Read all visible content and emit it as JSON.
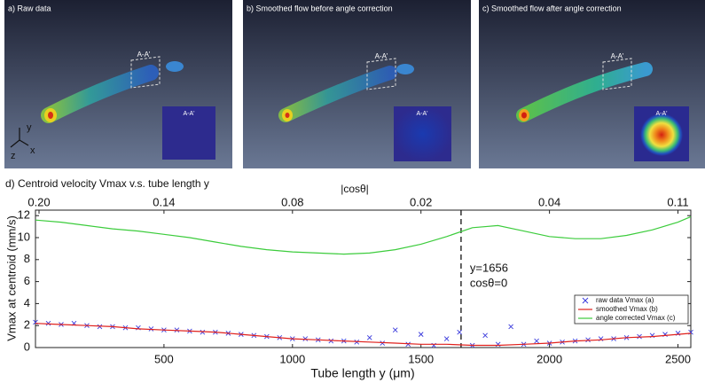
{
  "panels": [
    {
      "title": "a) Raw data",
      "section_label": "A-A'",
      "inset_label": "A-A'",
      "axes": [
        "y",
        "z",
        "x"
      ]
    },
    {
      "title": "b) Smoothed flow before angle correction",
      "section_label": "A-A'",
      "inset_label": "A-A'"
    },
    {
      "title": "c) Smoothed flow after angle correction",
      "section_label": "A-A'",
      "inset_label": "A-A'"
    }
  ],
  "chart_data": {
    "type": "line",
    "title": "d) Centroid velocity Vmax v.s. tube length y",
    "xlabel": "Tube length y (μm)",
    "ylabel": "Vmax at centroid (mm/s)",
    "x2label": "|cosθ|",
    "x2ticks": [
      "0.20",
      "0.14",
      "0.08",
      "0.02",
      "0.04",
      "0.11"
    ],
    "xlim": [
      0,
      2550
    ],
    "xticks": [
      500,
      1000,
      1500,
      2000,
      2500
    ],
    "ylim": [
      0,
      12.5
    ],
    "yticks": [
      0,
      2,
      4,
      6,
      8,
      10,
      12
    ],
    "vline": 1656,
    "annotations": [
      "y=1656",
      "cosθ=0"
    ],
    "legend": "lower right",
    "series": [
      {
        "name": "raw data Vmax (a)",
        "color": "#3b3bdc",
        "marker": "x",
        "x": [
          0,
          50,
          100,
          150,
          200,
          250,
          300,
          350,
          400,
          450,
          500,
          550,
          600,
          650,
          700,
          750,
          800,
          850,
          900,
          950,
          1000,
          1050,
          1100,
          1150,
          1200,
          1250,
          1300,
          1350,
          1400,
          1450,
          1500,
          1550,
          1600,
          1650,
          1700,
          1750,
          1800,
          1850,
          1900,
          1950,
          2000,
          2050,
          2100,
          2150,
          2200,
          2250,
          2300,
          2350,
          2400,
          2450,
          2500,
          2550
        ],
        "values": [
          2.3,
          2.2,
          2.1,
          2.2,
          2.0,
          1.9,
          1.9,
          1.8,
          1.8,
          1.7,
          1.6,
          1.6,
          1.5,
          1.4,
          1.4,
          1.3,
          1.2,
          1.1,
          1.0,
          0.9,
          0.8,
          0.8,
          0.7,
          0.6,
          0.6,
          0.5,
          0.9,
          0.4,
          1.6,
          0.3,
          1.2,
          0.2,
          0.8,
          1.4,
          0.2,
          1.1,
          0.3,
          1.9,
          0.3,
          0.6,
          0.4,
          0.5,
          0.6,
          0.7,
          0.8,
          0.8,
          0.9,
          1.0,
          1.1,
          1.2,
          1.3,
          1.4
        ]
      },
      {
        "name": "smoothed Vmax (b)",
        "color": "#e0201c",
        "marker": "line",
        "x": [
          0,
          100,
          200,
          300,
          400,
          500,
          600,
          700,
          800,
          900,
          1000,
          1100,
          1200,
          1300,
          1400,
          1500,
          1600,
          1700,
          1800,
          1900,
          2000,
          2100,
          2200,
          2300,
          2400,
          2500,
          2550
        ],
        "values": [
          2.2,
          2.1,
          2.0,
          1.9,
          1.7,
          1.6,
          1.5,
          1.4,
          1.2,
          1.0,
          0.8,
          0.7,
          0.6,
          0.5,
          0.4,
          0.3,
          0.3,
          0.2,
          0.2,
          0.3,
          0.4,
          0.6,
          0.7,
          0.9,
          1.0,
          1.2,
          1.3
        ]
      },
      {
        "name": "angle corrected Vmax (c)",
        "color": "#3ccc3c",
        "marker": "line",
        "x": [
          0,
          100,
          200,
          300,
          400,
          500,
          600,
          700,
          800,
          900,
          1000,
          1100,
          1200,
          1300,
          1400,
          1500,
          1600,
          1700,
          1800,
          1900,
          2000,
          2100,
          2200,
          2300,
          2400,
          2500,
          2550
        ],
        "values": [
          11.6,
          11.4,
          11.1,
          10.8,
          10.6,
          10.3,
          10.0,
          9.6,
          9.2,
          8.9,
          8.7,
          8.6,
          8.5,
          8.6,
          8.9,
          9.4,
          10.1,
          10.9,
          11.1,
          10.6,
          10.1,
          9.9,
          9.9,
          10.2,
          10.7,
          11.4,
          11.9
        ]
      }
    ]
  }
}
